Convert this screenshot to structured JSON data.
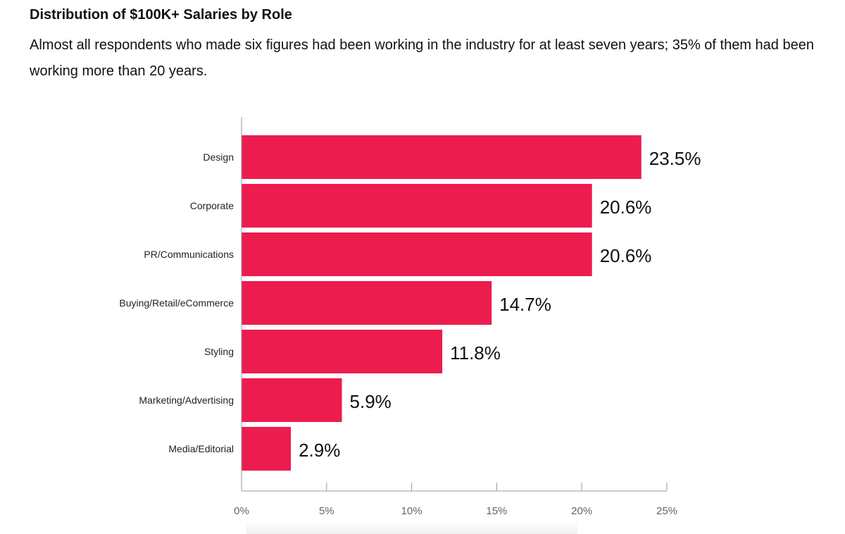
{
  "header": {
    "title": "Distribution of $100K+ Salaries by Role",
    "subtitle": "Almost all respondents who made six figures had been working in the industry for at least seven years; 35% of them had been working more than 20 years."
  },
  "chart_data": {
    "type": "bar",
    "orientation": "horizontal",
    "categories": [
      "Design",
      "Corporate",
      "PR/Communications",
      "Buying/Retail/eCommerce",
      "Styling",
      "Marketing/Advertising",
      "Media/Editorial"
    ],
    "values": [
      23.5,
      20.6,
      20.6,
      14.7,
      11.8,
      5.9,
      2.9
    ],
    "value_labels": [
      "23.5%",
      "20.6%",
      "20.6%",
      "14.7%",
      "11.8%",
      "5.9%",
      "2.9%"
    ],
    "x_ticks": [
      0,
      5,
      10,
      15,
      20,
      25
    ],
    "x_tick_labels": [
      "0%",
      "5%",
      "10%",
      "15%",
      "20%",
      "25%"
    ],
    "xlim": [
      0,
      25
    ],
    "grid": false,
    "legend": "none",
    "bar_color": "#EC1C4E",
    "axis_color": "#999999"
  }
}
